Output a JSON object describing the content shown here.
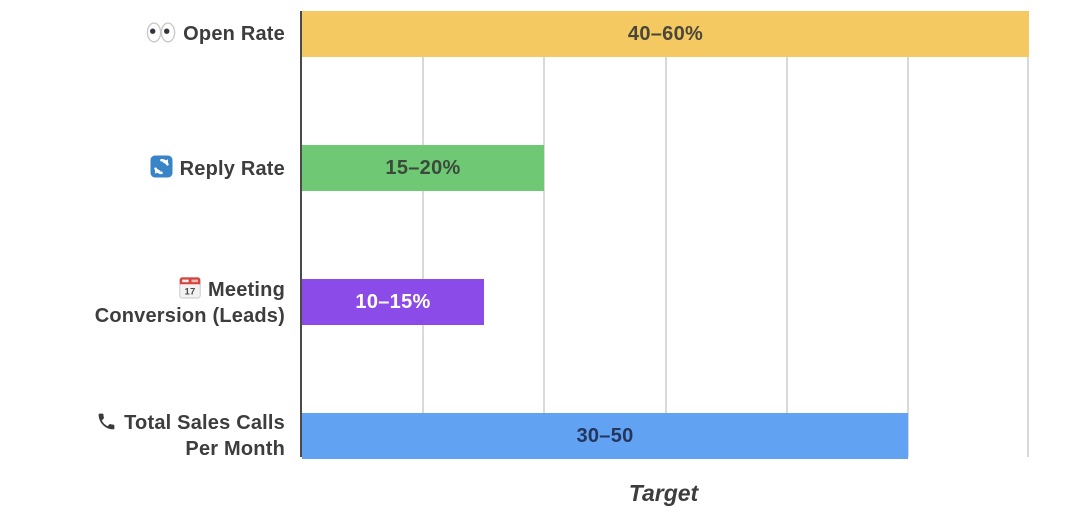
{
  "chart_data": {
    "type": "bar",
    "orientation": "horizontal",
    "title": "",
    "xlabel": "Target",
    "ylabel": "",
    "xlim": [
      0,
      60
    ],
    "gridline_step": 10,
    "grid": true,
    "legend": false,
    "categories": [
      "Open Rate",
      "Reply Rate",
      "Meeting Conversion (Leads)",
      "Total Sales Calls Per Month"
    ],
    "category_label_lines": [
      [
        "Open Rate"
      ],
      [
        "Reply Rate"
      ],
      [
        "Meeting",
        "Conversion (Leads)"
      ],
      [
        "Total Sales Calls",
        "Per Month"
      ]
    ],
    "category_icons": [
      "eyes-icon",
      "refresh-icon",
      "calendar-icon",
      "phone-icon"
    ],
    "values": [
      60,
      20,
      15,
      50
    ],
    "ranges": [
      [
        40,
        60
      ],
      [
        15,
        20
      ],
      [
        10,
        15
      ],
      [
        30,
        50
      ]
    ],
    "bar_labels": [
      "40–60%",
      "15–20%",
      "10–15%",
      "30–50"
    ],
    "bar_colors": [
      "#F4C961",
      "#6FC873",
      "#8B4BE8",
      "#61A3F2"
    ],
    "bar_label_colors": [
      "#4a4639",
      "#3a4a3c",
      "#ffffff",
      "#24365E"
    ],
    "calendar_icon_day": "17"
  },
  "colors": {
    "gridline": "#d9d9d9",
    "axis_line": "#4a4a4a",
    "category_label": "#3d3d3d",
    "xlabel": "#3d3d3d"
  }
}
